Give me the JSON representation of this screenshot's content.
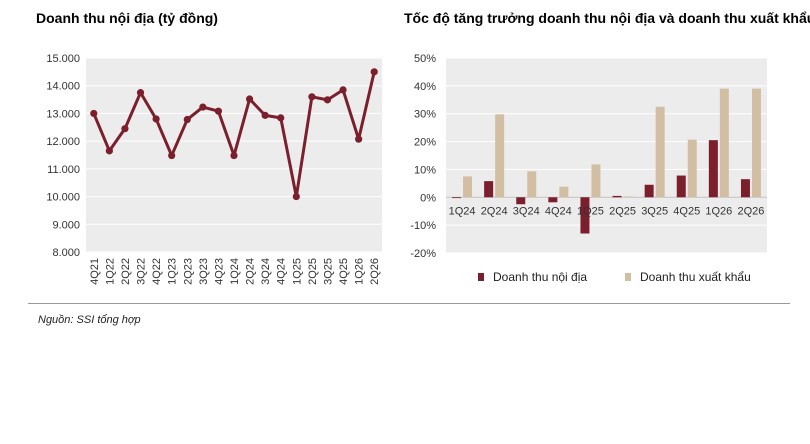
{
  "chart_data": [
    {
      "type": "line",
      "title": "Doanh thu nội địa (tỷ đồng)",
      "categories": [
        "4Q21",
        "1Q22",
        "2Q22",
        "3Q22",
        "4Q22",
        "1Q23",
        "2Q23",
        "3Q23",
        "4Q23",
        "1Q24",
        "2Q24",
        "3Q24",
        "4Q24",
        "1Q25",
        "2Q25",
        "3Q25",
        "4Q25",
        "1Q26",
        "2Q26"
      ],
      "values": [
        13000,
        11650,
        12450,
        13750,
        12800,
        11480,
        12780,
        13230,
        13080,
        11480,
        13520,
        12930,
        12840,
        10000,
        13600,
        13490,
        13850,
        12070,
        14500
      ],
      "ylim": [
        8000,
        15000
      ],
      "yticks": [
        "8.000",
        "9.000",
        "10.000",
        "11.000",
        "12.000",
        "13.000",
        "14.000",
        "15.000"
      ],
      "color": "#7a1f2b",
      "grid": true
    },
    {
      "type": "bar",
      "title": "Tốc độ tăng trưởng doanh thu nội địa và doanh thu xuất khẩu",
      "categories": [
        "1Q24",
        "2Q24",
        "3Q24",
        "4Q24",
        "1Q25",
        "2Q25",
        "3Q25",
        "4Q25",
        "1Q26",
        "2Q26"
      ],
      "series": [
        {
          "name": "Doanh thu nội địa",
          "color": "#7a1f2b",
          "values": [
            0,
            5.8,
            -2.5,
            -1.8,
            -13.0,
            0.5,
            4.5,
            7.8,
            20.5,
            6.5
          ]
        },
        {
          "name": "Doanh thu xuất khẩu",
          "color": "#d2bfa3",
          "values": [
            7.5,
            29.8,
            9.3,
            3.8,
            11.8,
            0.3,
            32.5,
            20.7,
            39.0,
            39.0
          ]
        }
      ],
      "ylim": [
        -20,
        50
      ],
      "yticks": [
        "-20%",
        "-10%",
        "0%",
        "10%",
        "20%",
        "30%",
        "40%",
        "50%"
      ],
      "grid": true,
      "legend": "bottom"
    }
  ],
  "source": "Nguồn: SSI tổng hợp"
}
